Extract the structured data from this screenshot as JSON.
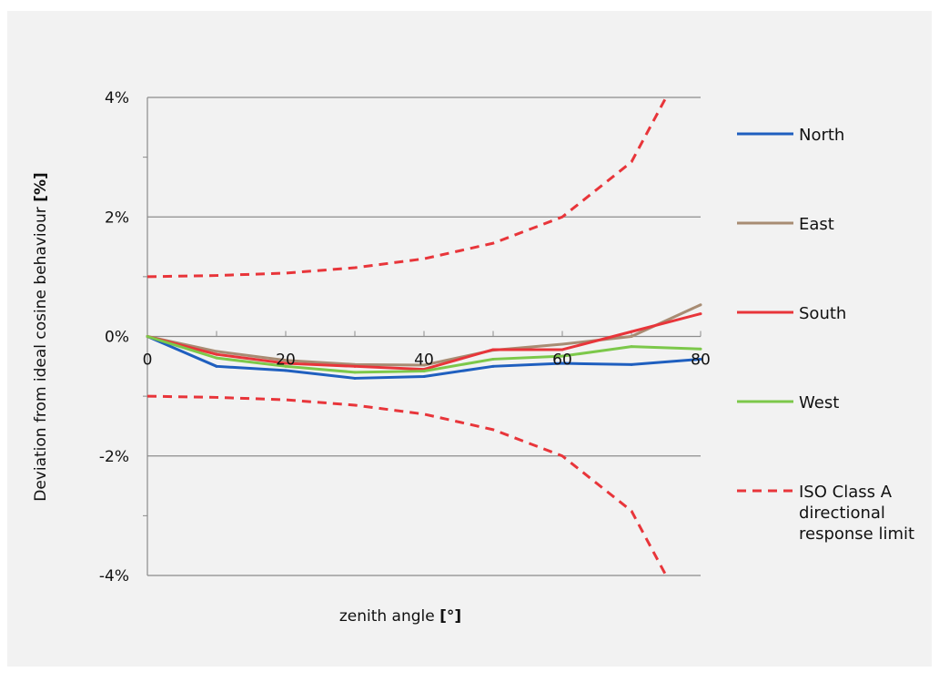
{
  "chart_data": {
    "type": "line",
    "xlabel": "zenith angle",
    "xlabel_unit": "[°]",
    "ylabel": "Deviation from ideal cosine behaviour",
    "ylabel_unit": "[%]",
    "xlim": [
      0,
      80
    ],
    "ylim": [
      -4,
      4
    ],
    "x_ticks": [
      0,
      20,
      40,
      60,
      80
    ],
    "x_tick_labels": [
      "0",
      "20",
      "40",
      "60",
      "80"
    ],
    "y_ticks": [
      4,
      2,
      0,
      -2,
      -4
    ],
    "y_tick_labels": [
      "4%",
      "2%",
      "0%",
      "-2%",
      "-4%"
    ],
    "grid": "horizontal",
    "legend": "right",
    "series": [
      {
        "name": "North",
        "color": "#1f5fbf",
        "style": "solid",
        "x": [
          0,
          10,
          20,
          30,
          40,
          50,
          60,
          70,
          80
        ],
        "y": [
          0,
          -0.5,
          -0.57,
          -0.7,
          -0.67,
          -0.5,
          -0.45,
          -0.47,
          -0.38
        ]
      },
      {
        "name": "East",
        "color": "#a88c73",
        "style": "solid",
        "x": [
          0,
          10,
          20,
          30,
          40,
          50,
          60,
          70,
          80
        ],
        "y": [
          0,
          -0.25,
          -0.4,
          -0.47,
          -0.48,
          -0.23,
          -0.13,
          0.0,
          0.53
        ]
      },
      {
        "name": "South",
        "color": "#e8353a",
        "style": "solid",
        "x": [
          0,
          10,
          20,
          30,
          40,
          50,
          60,
          70,
          80
        ],
        "y": [
          0,
          -0.3,
          -0.45,
          -0.5,
          -0.55,
          -0.22,
          -0.22,
          0.08,
          0.38
        ]
      },
      {
        "name": "West",
        "color": "#7cc84a",
        "style": "solid",
        "x": [
          0,
          10,
          20,
          30,
          40,
          50,
          60,
          70,
          80
        ],
        "y": [
          0,
          -0.36,
          -0.5,
          -0.6,
          -0.58,
          -0.38,
          -0.33,
          -0.17,
          -0.21
        ]
      },
      {
        "name": "ISO Class A directional response limit",
        "color": "#e8353a",
        "style": "dashed",
        "x": [
          0,
          10,
          20,
          30,
          40,
          50,
          60,
          70,
          75
        ],
        "y": [
          1.0,
          1.02,
          1.06,
          1.15,
          1.3,
          1.56,
          2.0,
          2.92,
          4.0
        ],
        "mirror": true
      }
    ]
  }
}
